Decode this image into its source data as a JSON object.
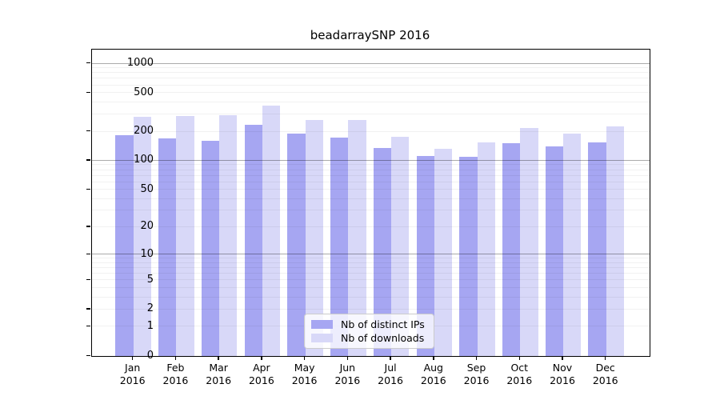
{
  "title": "beadarraySNP 2016",
  "legend": {
    "items": [
      {
        "label": "Nb of distinct IPs",
        "color": "#a6a6f2"
      },
      {
        "label": "Nb of downloads",
        "color": "#d8d8f8"
      }
    ]
  },
  "chart_data": {
    "type": "bar",
    "title": "beadarraySNP 2016",
    "categories": [
      "Jan\n2016",
      "Feb\n2016",
      "Mar\n2016",
      "Apr\n2016",
      "May\n2016",
      "Jun\n2016",
      "Jul\n2016",
      "Aug\n2016",
      "Sep\n2016",
      "Oct\n2016",
      "Nov\n2016",
      "Dec\n2016"
    ],
    "series": [
      {
        "name": "Nb of distinct IPs",
        "color": "#a6a6f2",
        "values": [
          182,
          170,
          162,
          237,
          190,
          172,
          136,
          112,
          109,
          151,
          141,
          154
        ]
      },
      {
        "name": "Nb of downloads",
        "color": "#d8d8f8",
        "values": [
          285,
          290,
          298,
          374,
          266,
          264,
          178,
          134,
          154,
          219,
          189,
          226
        ]
      }
    ],
    "xlabel": "",
    "ylabel": "",
    "yscale": "log10(1+x)",
    "ylim": [
      0,
      1400
    ],
    "yticks": [
      0,
      1,
      2,
      5,
      10,
      20,
      50,
      100,
      200,
      500,
      1000
    ],
    "major_gridlines": [
      10,
      100,
      1000
    ],
    "minor_gridlines": [
      1,
      2,
      3,
      4,
      5,
      6,
      7,
      8,
      9,
      20,
      30,
      40,
      50,
      60,
      70,
      80,
      90,
      200,
      300,
      400,
      500,
      600,
      700,
      800,
      900
    ],
    "grid": true,
    "legend_position": "lower center"
  }
}
